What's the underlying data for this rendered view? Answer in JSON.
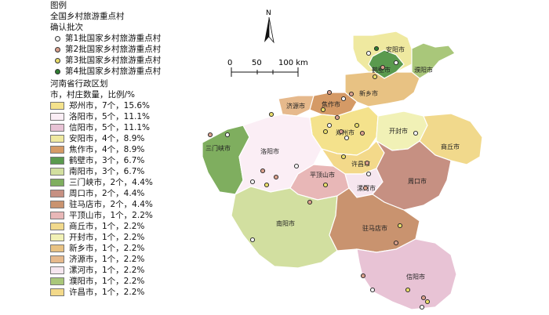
{
  "legend": {
    "title": "图例",
    "subtitle": "全国乡村旅游重点村",
    "batch_heading": "确认批次",
    "batches": [
      {
        "label": "第1批国家乡村旅游重点村",
        "color": "#f2f2f2"
      },
      {
        "label": "第2批国家乡村旅游重点村",
        "color": "#d9a08c"
      },
      {
        "label": "第3批国家乡村旅游重点村",
        "color": "#e8dc6a"
      },
      {
        "label": "第4批国家乡村旅游重点村",
        "color": "#2e7d32"
      }
    ],
    "region_heading_1": "河南省行政区划",
    "region_heading_2": "市，村庄数量，比例/%",
    "regions": [
      {
        "label": "郑州市，7个，15.6%",
        "color": "#f4e28c"
      },
      {
        "label": "洛阳市，5个，11.1%",
        "color": "#fbeef5"
      },
      {
        "label": "信阳市，5个，11.1%",
        "color": "#e8c3d5"
      },
      {
        "label": "安阳市，4个，8.9%",
        "color": "#efe9a0"
      },
      {
        "label": "焦作市，4个，8.9%",
        "color": "#d59a66"
      },
      {
        "label": "鹤壁市，3个，6.7%",
        "color": "#5a9a4e"
      },
      {
        "label": "南阳市，3个，6.7%",
        "color": "#d2dfa0"
      },
      {
        "label": "三门峡市，2个，4.4%",
        "color": "#7fae5f"
      },
      {
        "label": "周口市，2个，4.4%",
        "color": "#c69082"
      },
      {
        "label": "驻马店市，2个，4.4%",
        "color": "#c9936f"
      },
      {
        "label": "平顶山市，1个，2.2%",
        "color": "#e8b7b7"
      },
      {
        "label": "商丘市，1个，2.2%",
        "color": "#f1d98c"
      },
      {
        "label": "开封市，1个，2.2%",
        "color": "#f1f1b6"
      },
      {
        "label": "新乡市，1个，2.2%",
        "color": "#e8c283"
      },
      {
        "label": "济源市，1个，2.2%",
        "color": "#e6b98c"
      },
      {
        "label": "漯河市，1个，2.2%",
        "color": "#f6e6ef"
      },
      {
        "label": "濮阳市，1个，2.2%",
        "color": "#a9c77a"
      },
      {
        "label": "许昌市，1个，2.2%",
        "color": "#f3d98a"
      }
    ]
  },
  "north_label": "N",
  "scale": {
    "ticks": [
      "0",
      "50",
      "100 km"
    ]
  },
  "cities": [
    {
      "label": "安阳市"
    },
    {
      "label": "鹤壁市"
    },
    {
      "label": "濮阳市"
    },
    {
      "label": "新乡市"
    },
    {
      "label": "济源市"
    },
    {
      "label": "焦作市"
    },
    {
      "label": "郑州市"
    },
    {
      "label": "开封市"
    },
    {
      "label": "商丘市"
    },
    {
      "label": "三门峡市"
    },
    {
      "label": "洛阳市"
    },
    {
      "label": "许昌市"
    },
    {
      "label": "平顶山市"
    },
    {
      "label": "漯河市"
    },
    {
      "label": "周口市"
    },
    {
      "label": "南阳市"
    },
    {
      "label": "驻马店市"
    },
    {
      "label": "信阳市"
    }
  ]
}
